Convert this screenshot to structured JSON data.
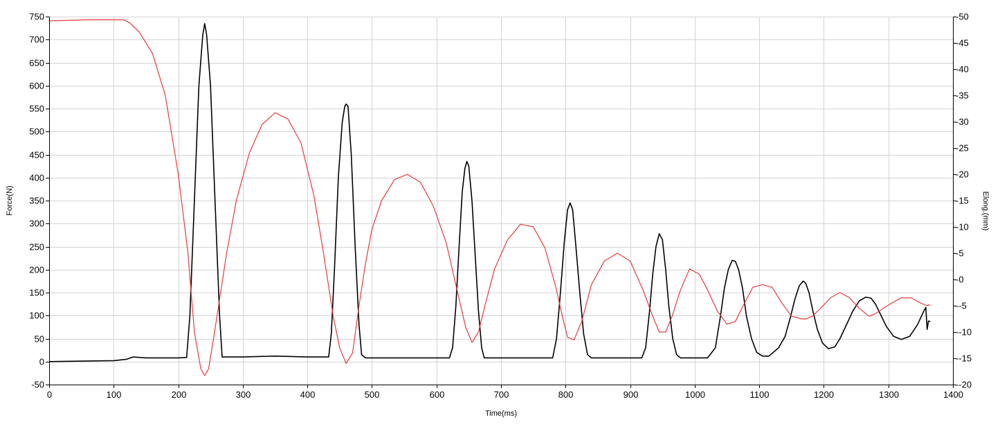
{
  "chart_data": {
    "type": "line",
    "xlabel": "Time(ms)",
    "ylabel": "Force(N)",
    "y2label": "Elong.(mm)",
    "xlim": [
      0,
      1400
    ],
    "ylim": [
      -50,
      750
    ],
    "y2lim": [
      -20,
      50
    ],
    "x_ticks": [
      "0",
      "100",
      "200",
      "300",
      "400",
      "500",
      "600",
      "700",
      "800",
      "900",
      "1000",
      "1100",
      "1200",
      "1300",
      "1400"
    ],
    "y_ticks": [
      "-50",
      "0",
      "50",
      "100",
      "150",
      "200",
      "250",
      "300",
      "350",
      "400",
      "450",
      "500",
      "550",
      "600",
      "650",
      "700",
      "750"
    ],
    "y2_ticks": [
      "-20",
      "-15",
      "-10",
      "-5",
      "0",
      "5",
      "10",
      "15",
      "20",
      "25",
      "30",
      "35",
      "40",
      "45",
      "50"
    ],
    "grid": true,
    "legend": "none",
    "colors": {
      "force": "#000000",
      "elongation": "#e8393b",
      "grid": "#d3d3d3",
      "axis": "#000000"
    },
    "series": [
      {
        "axis": "left",
        "color": "#000000",
        "x": [
          0,
          50,
          100,
          120,
          130,
          150,
          200,
          213,
          218,
          225,
          232,
          238,
          241,
          244,
          250,
          257,
          264,
          268,
          275,
          300,
          350,
          400,
          433,
          437,
          442,
          448,
          454,
          458,
          460,
          463,
          468,
          474,
          480,
          484,
          490,
          520,
          560,
          600,
          620,
          625,
          630,
          635,
          640,
          644,
          647,
          650,
          655,
          660,
          665,
          670,
          674,
          680,
          720,
          760,
          780,
          786,
          792,
          798,
          803,
          807,
          811,
          816,
          822,
          828,
          834,
          840,
          880,
          918,
          924,
          930,
          935,
          940,
          945,
          950,
          955,
          960,
          966,
          972,
          978,
          985,
          1020,
          1032,
          1040,
          1046,
          1052,
          1058,
          1063,
          1068,
          1074,
          1080,
          1088,
          1096,
          1105,
          1115,
          1130,
          1140,
          1148,
          1155,
          1162,
          1168,
          1172,
          1177,
          1183,
          1190,
          1198,
          1207,
          1217,
          1225,
          1235,
          1245,
          1255,
          1265,
          1273,
          1280,
          1288,
          1297,
          1308,
          1320,
          1333,
          1345,
          1355,
          1358,
          1360,
          1362,
          1365
        ],
        "y": [
          0,
          1,
          2,
          5,
          10,
          8,
          8,
          9,
          100,
          350,
          600,
          710,
          735,
          710,
          600,
          350,
          100,
          10,
          10,
          10,
          12,
          10,
          10,
          60,
          200,
          400,
          520,
          555,
          560,
          555,
          450,
          250,
          80,
          15,
          8,
          8,
          8,
          8,
          8,
          30,
          120,
          250,
          370,
          420,
          435,
          425,
          350,
          230,
          110,
          30,
          8,
          8,
          8,
          8,
          8,
          50,
          150,
          260,
          330,
          345,
          330,
          250,
          150,
          60,
          15,
          8,
          8,
          8,
          30,
          110,
          190,
          250,
          278,
          265,
          200,
          120,
          50,
          15,
          8,
          8,
          8,
          30,
          100,
          160,
          200,
          220,
          218,
          200,
          160,
          100,
          50,
          20,
          12,
          12,
          30,
          55,
          95,
          135,
          165,
          175,
          170,
          150,
          110,
          70,
          40,
          28,
          32,
          50,
          80,
          110,
          132,
          140,
          138,
          125,
          102,
          76,
          55,
          48,
          55,
          80,
          110,
          118,
          70,
          88,
          87
        ]
      },
      {
        "axis": "right",
        "color": "#e8393b",
        "x": [
          0,
          60,
          100,
          115,
          125,
          140,
          160,
          180,
          200,
          215,
          225,
          235,
          241,
          247,
          255,
          265,
          275,
          290,
          310,
          330,
          350,
          370,
          390,
          410,
          425,
          440,
          450,
          460,
          470,
          480,
          490,
          500,
          515,
          535,
          555,
          575,
          595,
          615,
          630,
          645,
          655,
          665,
          675,
          690,
          710,
          730,
          750,
          768,
          785,
          795,
          803,
          813,
          825,
          840,
          860,
          880,
          900,
          920,
          935,
          945,
          955,
          965,
          978,
          992,
          1007,
          1020,
          1035,
          1050,
          1063,
          1075,
          1090,
          1105,
          1120,
          1135,
          1150,
          1165,
          1173,
          1182,
          1195,
          1210,
          1225,
          1240,
          1255,
          1270,
          1280,
          1292,
          1305,
          1320,
          1335,
          1350,
          1360,
          1362,
          1365
        ],
        "y": [
          49.2,
          49.4,
          49.4,
          49.4,
          48.8,
          47,
          43,
          35,
          20,
          5,
          -10,
          -17,
          -18.3,
          -17,
          -11,
          -3,
          5,
          15,
          24,
          29.5,
          31.7,
          30.5,
          26,
          16,
          5,
          -7,
          -13,
          -16,
          -14,
          -5,
          3,
          9.5,
          15,
          19,
          20,
          18.5,
          14,
          7,
          -1,
          -9,
          -12,
          -10,
          -5,
          2,
          7.5,
          10.5,
          10,
          6,
          -1.5,
          -7,
          -11,
          -11.5,
          -8,
          -1,
          3.5,
          5,
          3.5,
          -2,
          -7,
          -10,
          -10,
          -7,
          -2,
          2,
          1,
          -2,
          -6,
          -8.5,
          -8,
          -5,
          -1.5,
          -1,
          -1.5,
          -4.5,
          -7,
          -7.5,
          -7.5,
          -7,
          -5.5,
          -3.5,
          -2.5,
          -3.5,
          -5.5,
          -7,
          -6.5,
          -5.5,
          -4.5,
          -3.5,
          -3.5,
          -4.5,
          -5,
          -4.8,
          -5
        ]
      }
    ]
  }
}
